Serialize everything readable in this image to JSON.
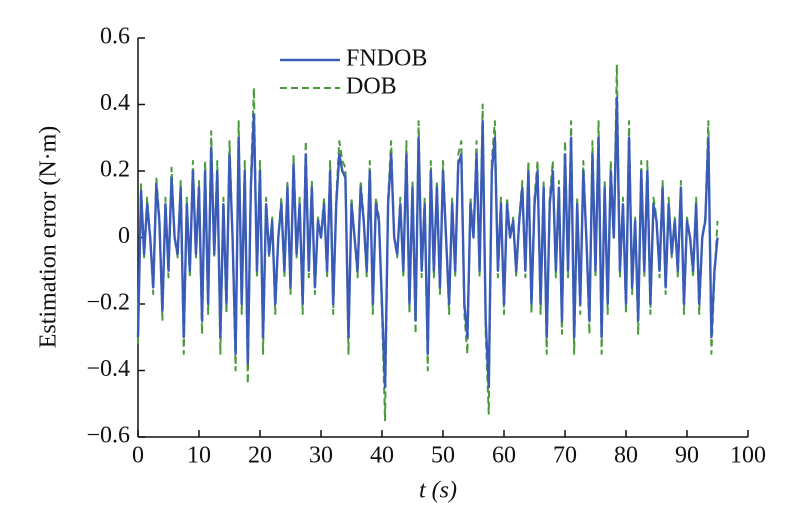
{
  "chart_data": {
    "type": "line",
    "xlabel": "t (s)",
    "ylabel": "Estimation error (N·m)",
    "xlim": [
      0,
      100
    ],
    "xticks": [
      0,
      10,
      20,
      30,
      40,
      50,
      60,
      70,
      80,
      90,
      100
    ],
    "ylim": [
      -0.6,
      0.6
    ],
    "yticks": [
      {
        "value": -0.6,
        "label": "−0.6"
      },
      {
        "value": -0.4,
        "label": "−0.4"
      },
      {
        "value": -0.2,
        "label": "−0.2"
      },
      0,
      0.2,
      0.4,
      0.6
    ],
    "grid": false,
    "legend": "top-left",
    "x": [
      0,
      0.5,
      1,
      1.5,
      2,
      2.5,
      3,
      3.5,
      4,
      4.5,
      5,
      5.5,
      6,
      6.5,
      7,
      7.5,
      8,
      8.5,
      9,
      9.5,
      10,
      10.5,
      11,
      11.5,
      12,
      12.5,
      13,
      13.5,
      14,
      14.5,
      15,
      15.5,
      16,
      16.5,
      17,
      17.5,
      18,
      18.5,
      19,
      19.5,
      20,
      20.5,
      21,
      21.5,
      22,
      22.5,
      23,
      23.5,
      24,
      24.5,
      25,
      25.5,
      26,
      26.5,
      27,
      27.5,
      28,
      28.5,
      29,
      29.5,
      30,
      30.5,
      31,
      31.5,
      32,
      32.5,
      33,
      33.5,
      34,
      34.5,
      35,
      35.5,
      36,
      36.5,
      37,
      37.5,
      38,
      38.5,
      39,
      39.5,
      40,
      40.5,
      41,
      41.5,
      42,
      42.5,
      43,
      43.5,
      44,
      44.5,
      45,
      45.5,
      46,
      46.5,
      47,
      47.5,
      48,
      48.5,
      49,
      49.5,
      50,
      50.5,
      51,
      51.5,
      52,
      52.5,
      53,
      53.5,
      54,
      54.5,
      55,
      55.5,
      56,
      56.5,
      57,
      57.5,
      58,
      58.5,
      59,
      59.5,
      60,
      60.5,
      61,
      61.5,
      62,
      62.5,
      63,
      63.5,
      64,
      64.5,
      65,
      65.5,
      66,
      66.5,
      67,
      67.5,
      68,
      68.5,
      69,
      69.5,
      70,
      70.5,
      71,
      71.5,
      72,
      72.5,
      73,
      73.5,
      74,
      74.5,
      75,
      75.5,
      76,
      76.5,
      77,
      77.5,
      78,
      78.5,
      79,
      79.5,
      80,
      80.5,
      81,
      81.5,
      82,
      82.5,
      83,
      83.5,
      84,
      84.5,
      85,
      85.5,
      86,
      86.5,
      87,
      87.5,
      88,
      88.5,
      89,
      89.5,
      90,
      90.5,
      91,
      91.5,
      92,
      92.5,
      93,
      93.5,
      94,
      94.5,
      95
    ],
    "series": [
      {
        "name": "FNDOB",
        "color": "#3a5cb8",
        "dash": false,
        "values": [
          -0.3,
          0.14,
          -0.05,
          0.1,
          0.0,
          -0.15,
          0.16,
          0.05,
          -0.22,
          0.1,
          -0.1,
          0.18,
          0.0,
          -0.05,
          0.15,
          -0.3,
          0.1,
          -0.1,
          0.2,
          -0.05,
          0.15,
          -0.25,
          0.2,
          -0.2,
          0.27,
          -0.05,
          0.2,
          -0.3,
          0.1,
          -0.2,
          0.25,
          0.0,
          -0.35,
          0.3,
          -0.2,
          0.2,
          -0.38,
          0.15,
          0.37,
          -0.1,
          0.2,
          -0.3,
          0.1,
          -0.05,
          0.05,
          -0.2,
          0.0,
          0.1,
          -0.1,
          0.15,
          -0.15,
          0.22,
          -0.05,
          0.1,
          -0.2,
          0.25,
          -0.1,
          0.15,
          -0.15,
          0.05,
          0.0,
          0.1,
          -0.1,
          0.2,
          -0.2,
          0.1,
          0.25,
          0.2,
          0.18,
          -0.3,
          0.1,
          0.0,
          -0.1,
          0.15,
          0.05,
          -0.1,
          0.2,
          -0.2,
          0.1,
          0.05,
          -0.2,
          -0.45,
          0.1,
          0.25,
          0.0,
          -0.05,
          0.1,
          -0.1,
          0.25,
          -0.2,
          0.15,
          -0.25,
          0.3,
          -0.1,
          0.1,
          -0.35,
          0.2,
          -0.1,
          0.15,
          -0.15,
          0.2,
          0.0,
          -0.2,
          0.1,
          -0.1,
          0.22,
          0.25,
          -0.2,
          -0.3,
          0.1,
          0.0,
          0.25,
          -0.1,
          0.35,
          -0.25,
          -0.45,
          0.2,
          0.3,
          -0.1,
          0.1,
          -0.2,
          0.1,
          0.0,
          0.05,
          -0.1,
          0.05,
          0.15,
          -0.1,
          0.2,
          -0.2,
          0.1,
          0.2,
          -0.2,
          0.15,
          -0.3,
          0.1,
          0.2,
          -0.1,
          0.15,
          -0.25,
          0.25,
          -0.1,
          0.3,
          -0.3,
          0.1,
          -0.2,
          0.2,
          0.0,
          -0.25,
          0.25,
          -0.1,
          0.3,
          -0.3,
          0.15,
          -0.2,
          0.2,
          0.0,
          0.42,
          -0.1,
          0.1,
          -0.2,
          0.3,
          -0.15,
          0.05,
          -0.25,
          0.2,
          -0.1,
          0.2,
          -0.2,
          0.1,
          0.05,
          -0.1,
          0.15,
          -0.15,
          0.1,
          -0.05,
          0.05,
          -0.1,
          0.15,
          -0.2,
          0.05,
          0.0,
          -0.1,
          0.1,
          -0.2,
          0.0,
          0.05,
          0.3,
          -0.3,
          -0.1,
          0.0
        ]
      },
      {
        "name": "DOB",
        "color": "#4a9a3c",
        "dash": true,
        "values": [
          -0.32,
          0.16,
          -0.06,
          0.12,
          0.0,
          -0.17,
          0.18,
          0.06,
          -0.25,
          0.12,
          -0.12,
          0.21,
          0.0,
          -0.06,
          0.17,
          -0.35,
          0.12,
          -0.12,
          0.23,
          -0.06,
          0.17,
          -0.29,
          0.23,
          -0.23,
          0.32,
          -0.06,
          0.23,
          -0.35,
          0.12,
          -0.23,
          0.29,
          0.0,
          -0.4,
          0.35,
          -0.23,
          0.23,
          -0.44,
          0.17,
          0.45,
          -0.12,
          0.23,
          -0.35,
          0.12,
          -0.06,
          0.06,
          -0.23,
          0.0,
          0.12,
          -0.12,
          0.17,
          -0.17,
          0.25,
          -0.06,
          0.12,
          -0.23,
          0.29,
          -0.12,
          0.17,
          -0.17,
          0.06,
          0.0,
          0.12,
          -0.12,
          0.23,
          -0.23,
          0.12,
          0.29,
          0.23,
          0.21,
          -0.35,
          0.12,
          0.0,
          -0.12,
          0.17,
          0.06,
          -0.12,
          0.23,
          -0.23,
          0.12,
          0.06,
          -0.23,
          -0.55,
          0.12,
          0.29,
          0.0,
          -0.06,
          0.12,
          -0.12,
          0.29,
          -0.23,
          0.17,
          -0.29,
          0.35,
          -0.12,
          0.12,
          -0.4,
          0.23,
          -0.12,
          0.17,
          -0.17,
          0.23,
          0.0,
          -0.23,
          0.12,
          -0.12,
          0.25,
          0.29,
          -0.23,
          -0.35,
          0.12,
          0.0,
          0.29,
          -0.12,
          0.4,
          -0.29,
          -0.53,
          0.23,
          0.35,
          -0.12,
          0.12,
          -0.23,
          0.12,
          0.0,
          0.06,
          -0.12,
          0.06,
          0.17,
          -0.12,
          0.23,
          -0.23,
          0.12,
          0.23,
          -0.23,
          0.17,
          -0.35,
          0.12,
          0.23,
          -0.12,
          0.17,
          -0.29,
          0.29,
          -0.12,
          0.35,
          -0.35,
          0.12,
          -0.23,
          0.23,
          0.0,
          -0.29,
          0.29,
          -0.12,
          0.35,
          -0.35,
          0.17,
          -0.23,
          0.23,
          0.0,
          0.52,
          -0.12,
          0.12,
          -0.23,
          0.35,
          -0.17,
          0.06,
          -0.29,
          0.23,
          -0.12,
          0.23,
          -0.23,
          0.12,
          0.06,
          -0.12,
          0.17,
          -0.17,
          0.12,
          -0.06,
          0.06,
          -0.12,
          0.17,
          -0.23,
          0.06,
          0.0,
          -0.12,
          0.12,
          -0.23,
          0.0,
          0.06,
          0.35,
          -0.35,
          -0.12,
          0.05
        ]
      }
    ]
  }
}
